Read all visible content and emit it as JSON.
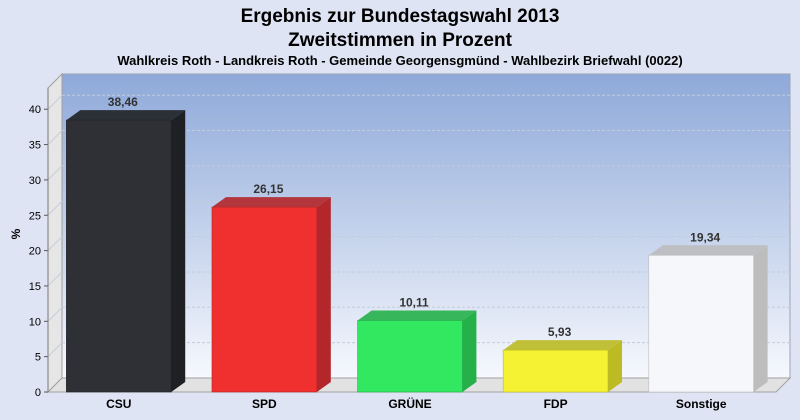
{
  "chart_data": {
    "type": "bar",
    "title": "Ergebnis zur Bundestagswahl 2013",
    "title_line2": "Zweitstimmen in Prozent",
    "subtitle": "Wahlkreis Roth - Landkreis Roth - Gemeinde Georgensgmünd - Wahlbezirk Briefwahl (0022)",
    "ylabel": "%",
    "xlabel": "",
    "ylim": [
      0,
      43
    ],
    "yticks": [
      0,
      5,
      10,
      15,
      20,
      25,
      30,
      35,
      40
    ],
    "grid": true,
    "categories": [
      "CSU",
      "SPD",
      "GRÜNE",
      "FDP",
      "Sonstige"
    ],
    "values": [
      38.46,
      26.15,
      10.11,
      5.93,
      19.34
    ],
    "value_labels": [
      "38,46",
      "26,15",
      "10,11",
      "5,93",
      "19,34"
    ],
    "colors": [
      "#2e3036",
      "#f0302f",
      "#32e860",
      "#f4f232",
      "#f6f7fb"
    ],
    "side_colors": [
      "#1f2024",
      "#b3262a",
      "#25b04a",
      "#bcbb24",
      "#bdbdbd"
    ]
  }
}
